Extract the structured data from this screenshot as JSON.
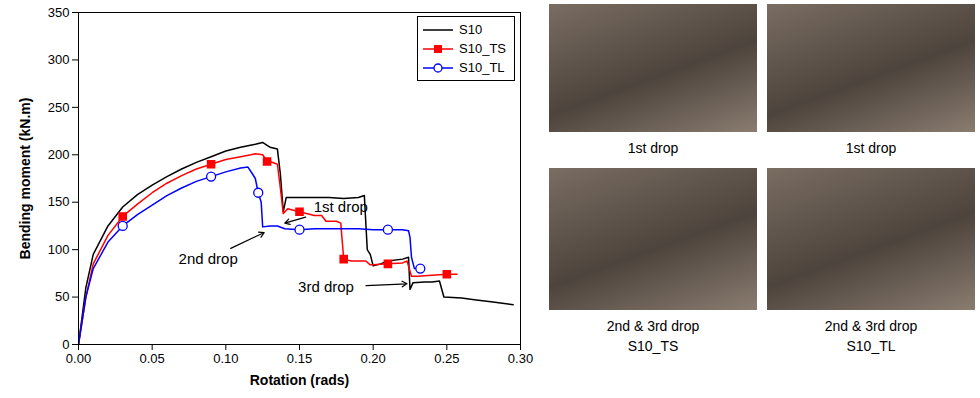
{
  "chart_data": {
    "type": "line",
    "xlabel": "Rotation (rads)",
    "ylabel": "Bending moment (kN.m)",
    "xlim": [
      0,
      0.3
    ],
    "ylim": [
      0,
      350
    ],
    "xticks": [
      {
        "value": 0,
        "label": "0.00"
      },
      {
        "value": 0.05,
        "label": "0.05"
      },
      {
        "value": 0.1,
        "label": "0.10"
      },
      {
        "value": 0.15,
        "label": "0.15"
      },
      {
        "value": 0.2,
        "label": "0.20"
      },
      {
        "value": 0.25,
        "label": "0.25"
      },
      {
        "value": 0.3,
        "label": "0.30"
      }
    ],
    "yticks": [
      0,
      50,
      100,
      150,
      200,
      250,
      300,
      350
    ],
    "legend": "top-right",
    "grid": false,
    "series": [
      {
        "name": "S10",
        "color": "#000000",
        "marker": "none",
        "x": [
          0,
          0.005,
          0.01,
          0.02,
          0.03,
          0.04,
          0.05,
          0.06,
          0.07,
          0.08,
          0.09,
          0.1,
          0.11,
          0.12,
          0.125,
          0.128,
          0.13,
          0.135,
          0.137,
          0.139,
          0.141,
          0.15,
          0.16,
          0.17,
          0.18,
          0.19,
          0.194,
          0.196,
          0.198,
          0.2,
          0.205,
          0.21,
          0.22,
          0.224,
          0.225,
          0.227,
          0.235,
          0.24,
          0.245,
          0.248,
          0.26,
          0.27,
          0.28,
          0.295
        ],
        "values": [
          0,
          60,
          95,
          125,
          145,
          158,
          168,
          177,
          185,
          192,
          198,
          204,
          208,
          211,
          213,
          210,
          208,
          206,
          180,
          140,
          155,
          155,
          155,
          155,
          154,
          155,
          157,
          100,
          95,
          83,
          85,
          88,
          90,
          92,
          58,
          65,
          66,
          66,
          67,
          50,
          49,
          47,
          45,
          42
        ]
      },
      {
        "name": "S10_TS",
        "color": "#ff0000",
        "marker": "square",
        "x": [
          0,
          0.005,
          0.01,
          0.02,
          0.03,
          0.04,
          0.05,
          0.06,
          0.07,
          0.08,
          0.09,
          0.1,
          0.11,
          0.117,
          0.12,
          0.125,
          0.128,
          0.13,
          0.135,
          0.137,
          0.139,
          0.142,
          0.15,
          0.16,
          0.165,
          0.168,
          0.175,
          0.178,
          0.18,
          0.185,
          0.19,
          0.195,
          0.198,
          0.2,
          0.21,
          0.22,
          0.223,
          0.226,
          0.23,
          0.24,
          0.25,
          0.257
        ],
        "values": [
          0,
          50,
          85,
          115,
          135,
          148,
          160,
          170,
          178,
          185,
          190,
          195,
          198,
          200,
          201,
          200,
          193,
          193,
          190,
          165,
          138,
          143,
          140,
          136,
          136,
          130,
          130,
          128,
          90,
          88,
          88,
          88,
          84,
          84,
          85,
          86,
          88,
          72,
          72,
          73,
          74,
          74
        ]
      },
      {
        "name": "S10_TL",
        "color": "#0000ff",
        "marker": "circle_open",
        "x": [
          0,
          0.005,
          0.01,
          0.02,
          0.03,
          0.04,
          0.05,
          0.06,
          0.07,
          0.08,
          0.09,
          0.1,
          0.11,
          0.115,
          0.118,
          0.12,
          0.122,
          0.124,
          0.125,
          0.13,
          0.135,
          0.14,
          0.15,
          0.16,
          0.17,
          0.18,
          0.19,
          0.2,
          0.21,
          0.22,
          0.224,
          0.225,
          0.226,
          0.228,
          0.232
        ],
        "values": [
          0,
          50,
          80,
          108,
          125,
          137,
          147,
          157,
          165,
          172,
          177,
          182,
          186,
          187,
          180,
          175,
          160,
          150,
          124,
          125,
          125,
          122,
          121,
          122,
          122,
          122,
          122,
          121,
          121,
          121,
          120,
          113,
          92,
          80,
          80
        ]
      }
    ],
    "annotations": [
      {
        "text": "1st drop",
        "x": 0.178,
        "y": 145,
        "target": [
          0.14,
          128
        ]
      },
      {
        "text": "2nd drop",
        "x": 0.088,
        "y": 90,
        "target": [
          0.126,
          118
        ]
      },
      {
        "text": "3rd drop",
        "x": 0.168,
        "y": 60,
        "target": [
          0.223,
          64
        ]
      }
    ]
  },
  "photos": [
    {
      "caption": "1st drop"
    },
    {
      "caption": "1st drop"
    },
    {
      "caption": "2nd & 3rd drop",
      "specimen": "S10_TS"
    },
    {
      "caption": "2nd & 3rd drop",
      "specimen": "S10_TL"
    }
  ]
}
